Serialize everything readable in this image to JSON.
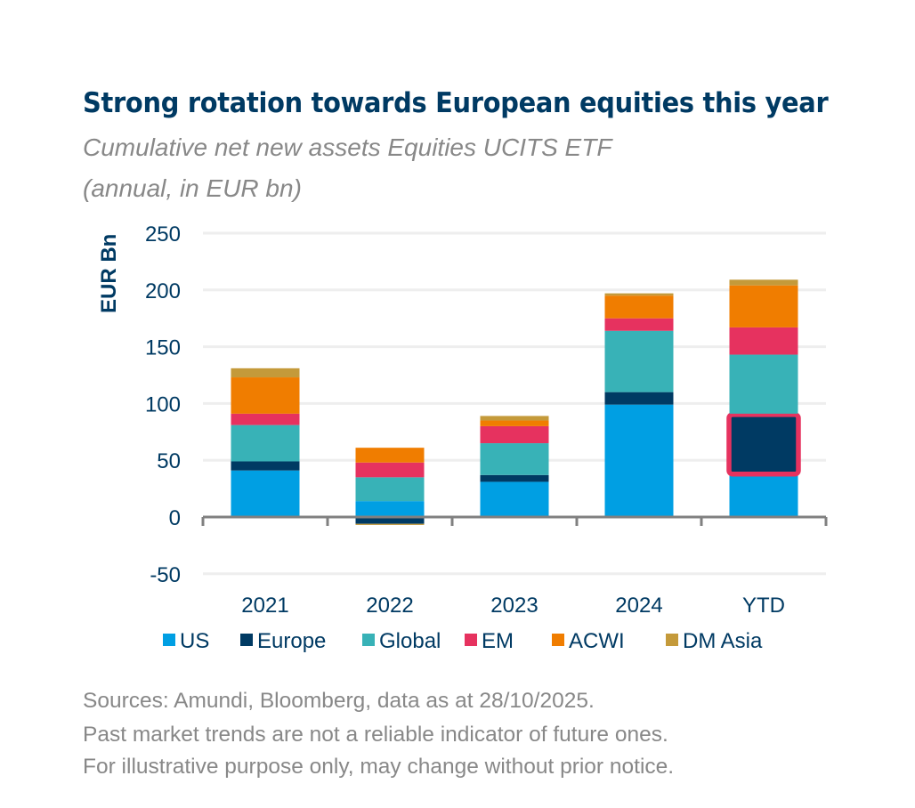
{
  "chart_data": {
    "type": "bar",
    "stacked": true,
    "title": "Strong rotation towards European equities this year",
    "subtitle_lines": [
      "Cumulative net new assets Equities UCITS ETF",
      "(annual, in EUR bn)"
    ],
    "xlabel": "",
    "ylabel": "EUR Bn",
    "ylim": [
      -50,
      250
    ],
    "yticks": [
      -50,
      0,
      50,
      100,
      150,
      200,
      250
    ],
    "grid": true,
    "legend_position": "bottom",
    "categories": [
      "2021",
      "2022",
      "2023",
      "2024",
      "YTD"
    ],
    "series": [
      {
        "name": "US",
        "color": "#009FE3",
        "values": [
          41,
          14,
          31,
          99,
          37
        ]
      },
      {
        "name": "Europe",
        "color": "#003A63",
        "values": [
          8,
          -6,
          6,
          11,
          54
        ]
      },
      {
        "name": "Global",
        "color": "#38B2B7",
        "values": [
          32,
          21,
          28,
          54,
          52
        ]
      },
      {
        "name": "EM",
        "color": "#E6325F",
        "values": [
          10,
          13,
          15,
          11,
          24
        ]
      },
      {
        "name": "ACWI",
        "color": "#F07D00",
        "values": [
          32,
          13,
          5,
          20,
          37
        ]
      },
      {
        "name": "DM Asia",
        "color": "#C49A3A",
        "values": [
          8,
          -1,
          4,
          2,
          5
        ]
      }
    ],
    "highlight": {
      "category": "YTD",
      "series": "Europe",
      "color": "#E6325F"
    }
  },
  "footnotes": [
    "Sources: Amundi, Bloomberg, data as at 28/10/2025.",
    "Past market trends are not a reliable indicator of future ones.",
    "For illustrative purpose only, may change without prior notice."
  ]
}
